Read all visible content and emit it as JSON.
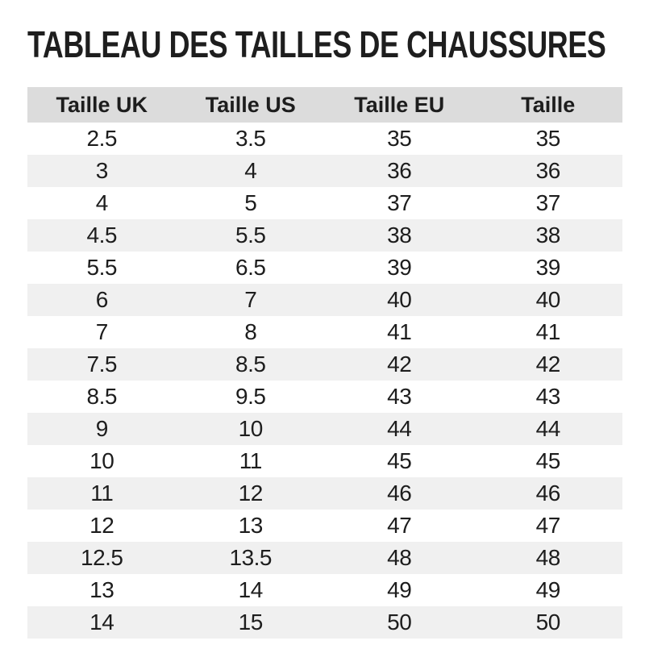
{
  "title": "TABLEAU DES TAILLES DE CHAUSSURES",
  "table": {
    "headers": [
      "Taille UK",
      "Taille US",
      "Taille EU",
      "Taille"
    ],
    "rows": [
      [
        "2.5",
        "3.5",
        "35",
        "35"
      ],
      [
        "3",
        "4",
        "36",
        "36"
      ],
      [
        "4",
        "5",
        "37",
        "37"
      ],
      [
        "4.5",
        "5.5",
        "38",
        "38"
      ],
      [
        "5.5",
        "6.5",
        "39",
        "39"
      ],
      [
        "6",
        "7",
        "40",
        "40"
      ],
      [
        "7",
        "8",
        "41",
        "41"
      ],
      [
        "7.5",
        "8.5",
        "42",
        "42"
      ],
      [
        "8.5",
        "9.5",
        "43",
        "43"
      ],
      [
        "9",
        "10",
        "44",
        "44"
      ],
      [
        "10",
        "11",
        "45",
        "45"
      ],
      [
        "11",
        "12",
        "46",
        "46"
      ],
      [
        "12",
        "13",
        "47",
        "47"
      ],
      [
        "12.5",
        "13.5",
        "48",
        "48"
      ],
      [
        "13",
        "14",
        "49",
        "49"
      ],
      [
        "14",
        "15",
        "50",
        "50"
      ]
    ]
  },
  "colors": {
    "page_bg": "#ffffff",
    "title_color": "#1e1e1e",
    "text_color": "#1d1d1d",
    "header_bg": "#dcdcdc",
    "stripe_bg": "#f0f0f0"
  }
}
